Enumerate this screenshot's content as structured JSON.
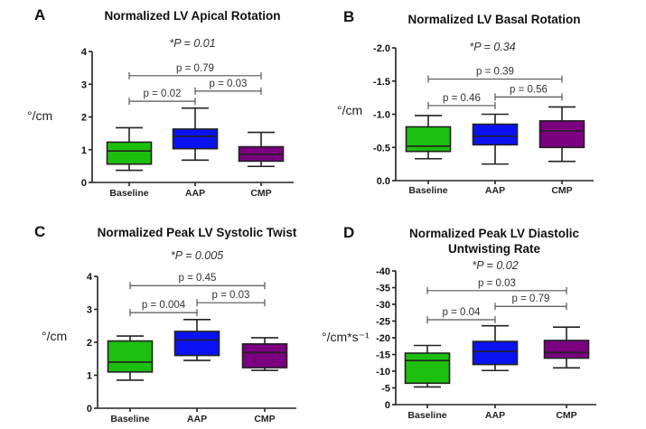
{
  "chart_data": [
    {
      "type": "box",
      "panel": "A",
      "title": "Normalized LV Apical Rotation",
      "overall_p": "*P = 0.01",
      "ylabel": "°/cm",
      "ylim": [
        0,
        4
      ],
      "inverted": false,
      "yticks": [
        0,
        1,
        2,
        3,
        4
      ],
      "ytick_labels": [
        "0",
        "1",
        "2",
        "3",
        "4"
      ],
      "categories": [
        "Baseline",
        "AAP",
        "CMP"
      ],
      "colors": [
        "#1dbf0f",
        "#0a12f2",
        "#7b0080"
      ],
      "boxes": [
        {
          "min": 0.37,
          "q1": 0.56,
          "median": 0.96,
          "q3": 1.23,
          "max": 1.67
        },
        {
          "min": 0.68,
          "q1": 1.03,
          "median": 1.41,
          "q3": 1.63,
          "max": 2.27
        },
        {
          "min": 0.49,
          "q1": 0.65,
          "median": 0.86,
          "q3": 1.09,
          "max": 1.53
        }
      ],
      "comparisons": [
        {
          "from": 0,
          "to": 2,
          "y": 3.26,
          "label": "p = 0.79"
        },
        {
          "from": 1,
          "to": 2,
          "y": 2.79,
          "label": "p = 0.03"
        },
        {
          "from": 0,
          "to": 1,
          "y": 2.48,
          "label": "p = 0.02"
        }
      ]
    },
    {
      "type": "box",
      "panel": "B",
      "title": "Normalized LV Basal Rotation",
      "overall_p": "*P = 0.34",
      "ylabel": "°/cm",
      "ylim": [
        0,
        -2.0
      ],
      "inverted": true,
      "yticks": [
        0,
        -0.5,
        -1.0,
        -1.5,
        -2.0
      ],
      "ytick_labels": [
        "0.0",
        "-0.5",
        "-1.0",
        "-1.5",
        "-2.0"
      ],
      "categories": [
        "Baseline",
        "AAP",
        "CMP"
      ],
      "colors": [
        "#1dbf0f",
        "#0a12f2",
        "#7b0080"
      ],
      "boxes": [
        {
          "min": -0.33,
          "q1": -0.44,
          "median": -0.52,
          "q3": -0.81,
          "max": -0.98
        },
        {
          "min": -0.25,
          "q1": -0.54,
          "median": -0.67,
          "q3": -0.85,
          "max": -1.0
        },
        {
          "min": -0.29,
          "q1": -0.5,
          "median": -0.75,
          "q3": -0.9,
          "max": -1.11
        }
      ],
      "comparisons": [
        {
          "from": 0,
          "to": 2,
          "y": -1.53,
          "label": "p = 0.39"
        },
        {
          "from": 1,
          "to": 2,
          "y": -1.26,
          "label": "p = 0.56"
        },
        {
          "from": 0,
          "to": 1,
          "y": -1.13,
          "label": "p = 0.46"
        }
      ]
    },
    {
      "type": "box",
      "panel": "C",
      "title": "Normalized Peak LV Systolic Twist",
      "overall_p": "*P = 0.005",
      "ylabel": "°/cm",
      "ylim": [
        0,
        4
      ],
      "inverted": false,
      "yticks": [
        0,
        1,
        2,
        3,
        4
      ],
      "ytick_labels": [
        "0",
        "1",
        "2",
        "3",
        "4"
      ],
      "categories": [
        "Baseline",
        "AAP",
        "CMP"
      ],
      "colors": [
        "#1dbf0f",
        "#0a12f2",
        "#7b0080"
      ],
      "boxes": [
        {
          "min": 0.85,
          "q1": 1.1,
          "median": 1.4,
          "q3": 2.04,
          "max": 2.19
        },
        {
          "min": 1.45,
          "q1": 1.6,
          "median": 2.07,
          "q3": 2.33,
          "max": 2.69
        },
        {
          "min": 1.15,
          "q1": 1.23,
          "median": 1.69,
          "q3": 1.95,
          "max": 2.14
        }
      ],
      "comparisons": [
        {
          "from": 0,
          "to": 2,
          "y": 3.72,
          "label": "p = 0.45"
        },
        {
          "from": 1,
          "to": 2,
          "y": 3.2,
          "label": "p = 0.03"
        },
        {
          "from": 0,
          "to": 1,
          "y": 2.9,
          "label": "p = 0.004"
        }
      ]
    },
    {
      "type": "box",
      "panel": "D",
      "title": "Normalized Peak LV Diastolic Untwisting Rate",
      "title_lines": [
        "Normalized Peak LV Diastolic",
        "Untwisting Rate"
      ],
      "overall_p": "*P = 0.02",
      "ylabel": "°/cm*s⁻¹",
      "ylim": [
        0,
        -40
      ],
      "inverted": true,
      "yticks": [
        0,
        -5,
        -10,
        -15,
        -20,
        -25,
        -30,
        -35,
        -40
      ],
      "ytick_labels": [
        "0",
        "-5",
        "-10",
        "-15",
        "-20",
        "-25",
        "-30",
        "-35",
        "-40"
      ],
      "categories": [
        "Baseline",
        "AAP",
        "CMP"
      ],
      "colors": [
        "#1dbf0f",
        "#0a12f2",
        "#7b0080"
      ],
      "boxes": [
        {
          "min": -5.3,
          "q1": -6.4,
          "median": -13.2,
          "q3": -15.4,
          "max": -17.7
        },
        {
          "min": -10.2,
          "q1": -12.0,
          "median": -15.9,
          "q3": -18.9,
          "max": -23.6
        },
        {
          "min": -11.0,
          "q1": -13.9,
          "median": -15.6,
          "q3": -19.2,
          "max": -23.2
        }
      ],
      "comparisons": [
        {
          "from": 0,
          "to": 2,
          "y": -34.1,
          "label": "p = 0.03"
        },
        {
          "from": 1,
          "to": 2,
          "y": -29.4,
          "label": "p = 0.79"
        },
        {
          "from": 0,
          "to": 1,
          "y": -25.4,
          "label": "p = 0.04"
        }
      ]
    }
  ]
}
